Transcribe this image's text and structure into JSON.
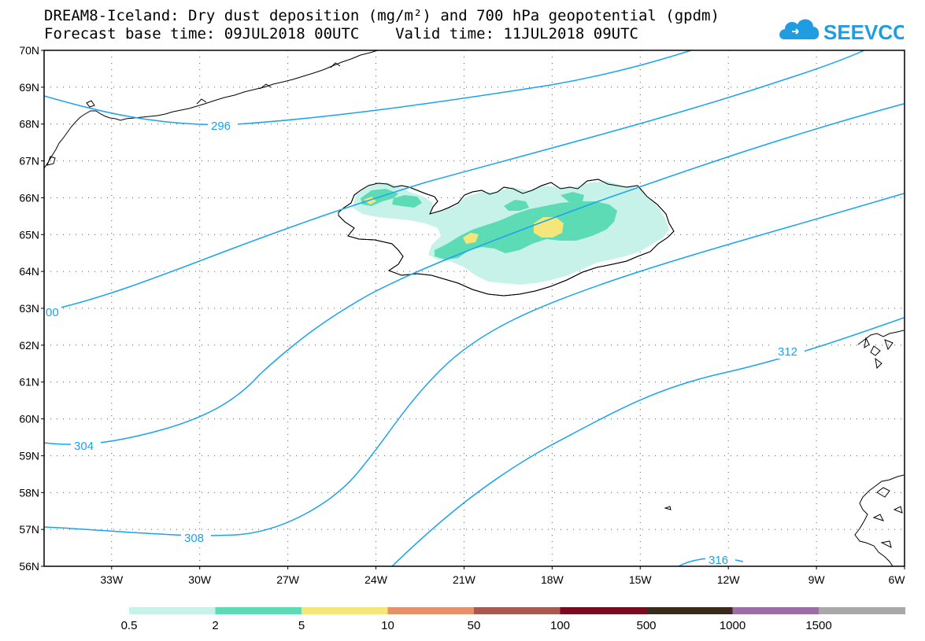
{
  "header": {
    "title_line1": "DREAM8-Iceland: Dry dust deposition (mg/m²) and 700 hPa geopotential (gpdm)",
    "title_line2": "Forecast base time: 09JUL2018 00UTC    Valid time: 11JUL2018 09UTC",
    "logo_text": "SEEVCCC",
    "logo_color": "#1f9de0"
  },
  "map": {
    "lat_labels": [
      "70N",
      "69N",
      "68N",
      "67N",
      "66N",
      "65N",
      "64N",
      "63N",
      "62N",
      "61N",
      "60N",
      "59N",
      "58N",
      "57N",
      "56N"
    ],
    "lon_labels": [
      "33W",
      "30W",
      "27W",
      "24W",
      "21W",
      "18W",
      "15W",
      "12W",
      "9W",
      "6W"
    ],
    "contour_color": "#1aa3f0",
    "contours": [
      {
        "name": "c296",
        "label": "296"
      },
      {
        "name": "c300",
        "label": "00"
      },
      {
        "name": "c304",
        "label": "304"
      },
      {
        "name": "c308",
        "label": "308"
      },
      {
        "name": "c312",
        "label": "312"
      },
      {
        "name": "c316",
        "label": "316"
      }
    ]
  },
  "colorbar": {
    "colors": [
      "#c6f2ea",
      "#5ddbb4",
      "#f5e67a",
      "#e8906a",
      "#a85a50",
      "#7a0a1e",
      "#3a2a1c",
      "#9a6fa8",
      "#a8a8a8"
    ],
    "labels": [
      "0.5",
      "2",
      "5",
      "10",
      "50",
      "100",
      "500",
      "1000",
      "1500"
    ]
  }
}
